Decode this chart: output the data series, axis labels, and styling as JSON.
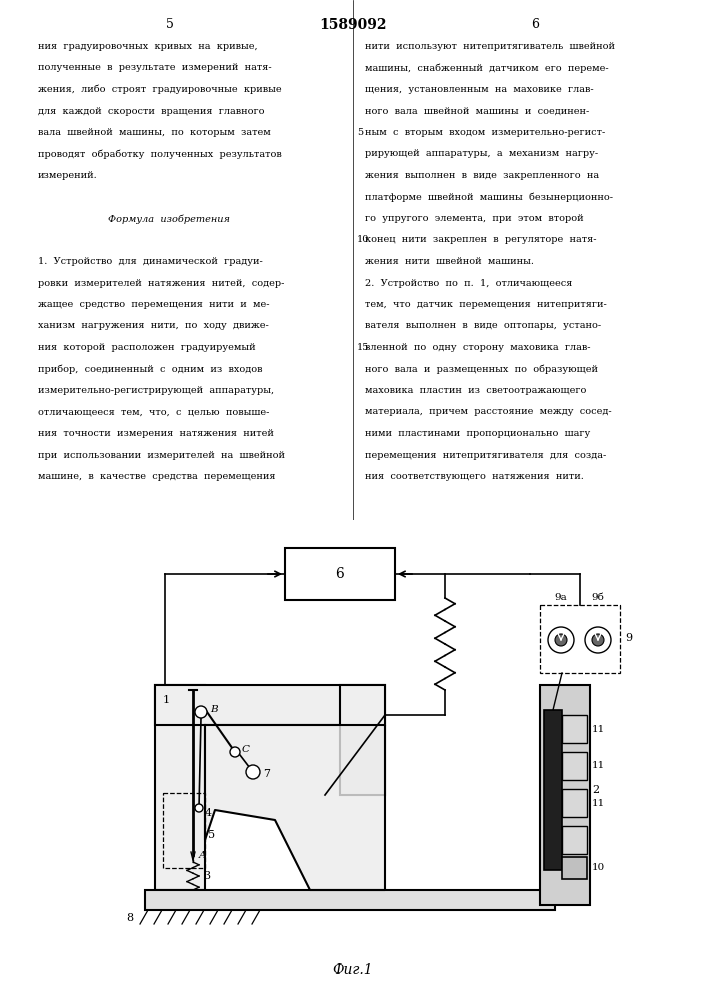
{
  "title": "1589092",
  "fig_caption": "Фиг.1",
  "bg_color": "#ffffff",
  "line_color": "#000000",
  "text_color": "#000000",
  "left_lines": [
    "ния  градуировочных  кривых  на  кривые,",
    "полученные  в  результате  измерений  натя-",
    "жения,  либо  строят  градуировочные  кривые",
    "для  каждой  скорости  вращения  главного",
    "вала  швейной  машины,  по  которым  затем",
    "проводят  обработку  полученных  результатов",
    "измерений.",
    "",
    "Формула  изобретения",
    "",
    "1.  Устройство  для  динамической  градуи-",
    "ровки  измерителей  натяжения  нитей,  содер-",
    "жащее  средство  перемещения  нити  и  ме-",
    "ханизм  нагружения  нити,  по  ходу  движе-",
    "ния  которой  расположен  градуируемый",
    "прибор,  соединенный  с  одним  из  входов",
    "измерительно-регистрирующей  аппаратуры,",
    "отличающееся  тем,  что,  с  целью  повыше-",
    "ния  точности  измерения  натяжения  нитей",
    "при  использовании  измерителей  на  швейной",
    "машине,  в  качестве  средства  перемещения"
  ],
  "right_lines": [
    "нити  используют  нитепритягиватель  швейной",
    "машины,  снабженный  датчиком  его  переме-",
    "щения,  установленным  на  маховике  глав-",
    "ного  вала  швейной  машины  и  соединен-",
    "ным  с  вторым  входом  измерительно-регист-",
    "рирующей  аппаратуры,  а  механизм  нагру-",
    "жения  выполнен  в  виде  закрепленного  на",
    "платформе  швейной  машины  безынерционно-",
    "го  упругого  элемента,  при  этом  второй",
    "конец  нити  закреплен  в  регуляторе  натя-",
    "жения  нити  швейной  машины.",
    "2.  Устройство  по  п.  1,  отличающееся",
    "тем,  что  датчик  перемещения  нитепритяги-",
    "вателя  выполнен  в  виде  оптопары,  устано-",
    "вленной  по  одну  сторону  маховика  глав-",
    "ного  вала  и  размещенных  по  образующей",
    "маховика  пластин  из  светоотражающего",
    "материала,  причем  расстояние  между  сосед-",
    "ними  пластинами  пропорционально  шагу",
    "перемещения  нитепритягивателя  для  созда-",
    "ния  соответствующего  натяжения  нити."
  ],
  "line_numbers": {
    "4": "5",
    "9": "10",
    "14": "15"
  }
}
